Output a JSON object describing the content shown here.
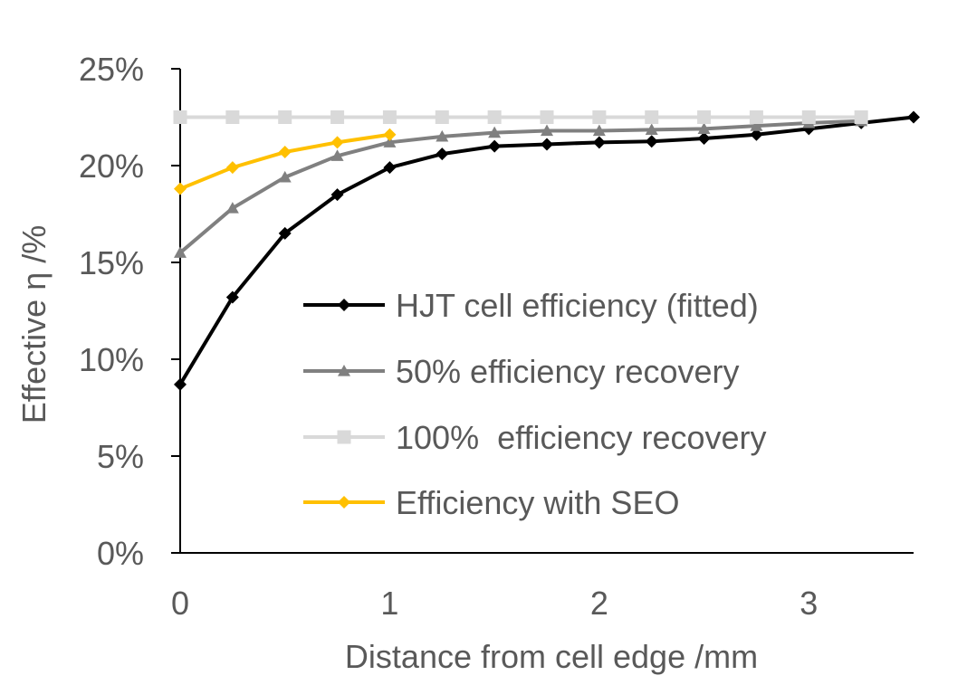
{
  "chart_data": {
    "type": "line",
    "title": "",
    "xlabel": "Distance from cell edge /mm",
    "ylabel": "Effective η /%",
    "xlim": [
      0,
      3.5
    ],
    "ylim": [
      0,
      25
    ],
    "x_ticks": [
      0,
      1,
      2,
      3
    ],
    "y_ticks": [
      0,
      5,
      10,
      15,
      20,
      25
    ],
    "y_tick_labels": [
      "0%",
      "5%",
      "10%",
      "15%",
      "20%",
      "25%"
    ],
    "x_tick_labels": [
      "0",
      "1",
      "2",
      "3"
    ],
    "grid": false,
    "legend_position": "bottom-right",
    "series": [
      {
        "name": "HJT cell efficiency (fitted)",
        "color": "#000000",
        "marker": "diamond",
        "x": [
          0,
          0.25,
          0.5,
          0.75,
          1,
          1.25,
          1.5,
          1.75,
          2,
          2.25,
          2.5,
          2.75,
          3,
          3.25,
          3.5
        ],
        "y": [
          8.7,
          13.2,
          16.5,
          18.5,
          19.9,
          20.6,
          21.0,
          21.1,
          21.2,
          21.25,
          21.4,
          21.6,
          21.9,
          22.2,
          22.5
        ]
      },
      {
        "name": "50% efficiency recovery",
        "color": "#808080",
        "marker": "triangle",
        "x": [
          0,
          0.25,
          0.5,
          0.75,
          1,
          1.25,
          1.5,
          1.75,
          2,
          2.25,
          2.5,
          2.75,
          3,
          3.25
        ],
        "y": [
          15.5,
          17.8,
          19.4,
          20.5,
          21.2,
          21.5,
          21.7,
          21.8,
          21.8,
          21.85,
          21.9,
          22.05,
          22.2,
          22.3
        ]
      },
      {
        "name": "100%  efficiency recovery",
        "color": "#d9d9d9",
        "marker": "square",
        "x": [
          0,
          0.25,
          0.5,
          0.75,
          1,
          1.25,
          1.5,
          1.75,
          2,
          2.25,
          2.5,
          2.75,
          3,
          3.25
        ],
        "y": [
          22.5,
          22.5,
          22.5,
          22.5,
          22.5,
          22.5,
          22.5,
          22.5,
          22.5,
          22.5,
          22.5,
          22.5,
          22.5,
          22.5
        ]
      },
      {
        "name": "Efficiency with SEO",
        "color": "#ffc000",
        "marker": "diamond",
        "x": [
          0,
          0.25,
          0.5,
          0.75,
          1
        ],
        "y": [
          18.8,
          19.9,
          20.7,
          21.2,
          21.6
        ]
      }
    ]
  }
}
